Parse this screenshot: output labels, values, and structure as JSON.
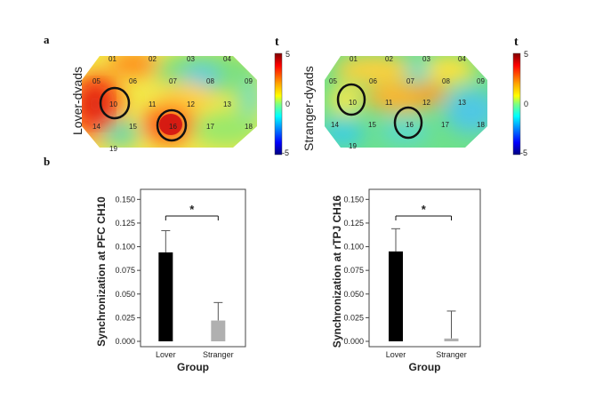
{
  "panel_a_label": "a",
  "panel_b_label": "b",
  "maps": [
    {
      "row_label": "Lover-dyads",
      "colorbar_title": "t",
      "colorbar_ticks": [
        "5",
        "0",
        "-5"
      ],
      "channels": [
        "01",
        "02",
        "03",
        "04",
        "05",
        "06",
        "07",
        "08",
        "09",
        "10",
        "11",
        "12",
        "13",
        "14",
        "15",
        "16",
        "17",
        "18",
        "19"
      ],
      "highlighted_channels": [
        "10",
        "16"
      ]
    },
    {
      "row_label": "Stranger-dyads",
      "colorbar_title": "t",
      "colorbar_ticks": [
        "5",
        "0",
        "-5"
      ],
      "channels": [
        "01",
        "02",
        "03",
        "04",
        "05",
        "06",
        "07",
        "08",
        "09",
        "10",
        "11",
        "12",
        "13",
        "14",
        "15",
        "16",
        "17",
        "18",
        "19"
      ],
      "highlighted_channels": [
        "10",
        "16"
      ]
    }
  ],
  "chart_data": [
    {
      "type": "bar",
      "categories": [
        "Lover",
        "Stranger"
      ],
      "values": [
        0.094,
        0.022
      ],
      "error_upper": [
        0.117,
        0.041
      ],
      "colors": [
        "#000000",
        "#b0b0b0"
      ],
      "xlabel": "Group",
      "ylabel": "Synchronization at PFC CH10",
      "yticks": [
        "0.000",
        "0.025",
        "0.050",
        "0.075",
        "0.100",
        "0.125",
        "0.150"
      ],
      "ylim": [
        0,
        0.155
      ],
      "significance": "*"
    },
    {
      "type": "bar",
      "categories": [
        "Lover",
        "Stranger"
      ],
      "values": [
        0.095,
        0.003
      ],
      "error_upper": [
        0.119,
        0.032
      ],
      "colors": [
        "#000000",
        "#b0b0b0"
      ],
      "xlabel": "Group",
      "ylabel": "Synchronization at rTPJ CH16",
      "yticks": [
        "0.000",
        "0.025",
        "0.050",
        "0.075",
        "0.100",
        "0.125",
        "0.150"
      ],
      "ylim": [
        0,
        0.155
      ],
      "significance": "*"
    }
  ]
}
